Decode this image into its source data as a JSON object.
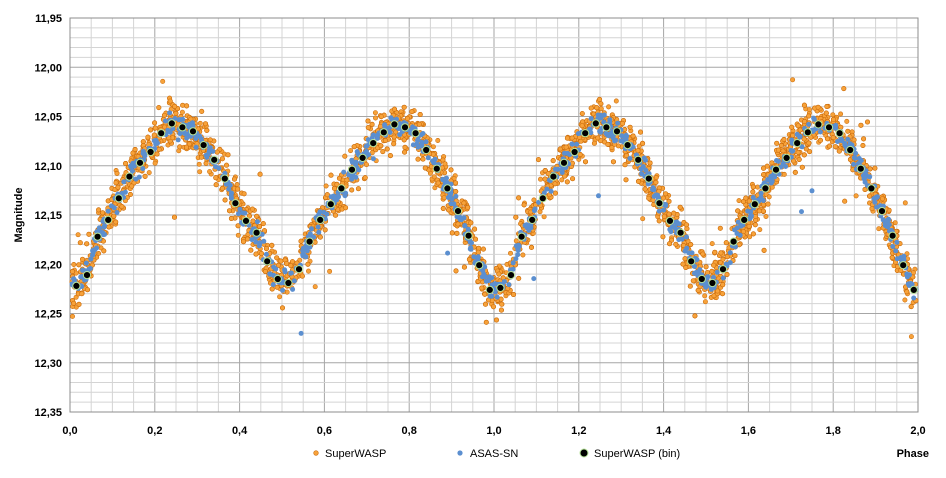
{
  "chart_data": {
    "type": "scatter",
    "title": "",
    "xlabel": "Phase",
    "ylabel": "Magnitude",
    "xlim": [
      0,
      2
    ],
    "ylim": [
      11.95,
      12.35
    ],
    "y_inverted": true,
    "grid": true,
    "legend_position": "bottom",
    "decimal_separator": ",",
    "x_ticks": [
      "0,0",
      "0,2",
      "0,4",
      "0,6",
      "0,8",
      "1,0",
      "1,2",
      "1,4",
      "1,6",
      "1,8",
      "2,0"
    ],
    "y_ticks": [
      "11,95",
      "12,00",
      "12,05",
      "12,10",
      "12,15",
      "12,20",
      "12,25",
      "12,30",
      "12,35"
    ],
    "legend": {
      "superwasp": "SuperWASP",
      "asassn": "ASAS-SN",
      "superwasp_bin": "SuperWASP (bin)"
    },
    "colors": {
      "superwasp_fill": "#f7a23a",
      "superwasp_edge": "#c96a0a",
      "asassn": "#5b8fd0",
      "bin_fill": "#000000",
      "bin_edge": "#b7e59a",
      "grid_major": "#a6a6a6",
      "grid_minor": "#d4d4d4"
    },
    "series": [
      {
        "name": "SuperWASP (bin)",
        "x": [
          0.015,
          0.04,
          0.065,
          0.09,
          0.115,
          0.14,
          0.165,
          0.19,
          0.215,
          0.24,
          0.265,
          0.29,
          0.315,
          0.34,
          0.365,
          0.39,
          0.415,
          0.44,
          0.465,
          0.49,
          0.515,
          0.54,
          0.565,
          0.59,
          0.615,
          0.64,
          0.665,
          0.69,
          0.715,
          0.74,
          0.765,
          0.79,
          0.815,
          0.84,
          0.865,
          0.89,
          0.915,
          0.94,
          0.965,
          0.99,
          1.015,
          1.04,
          1.065,
          1.09,
          1.115,
          1.14,
          1.165,
          1.19,
          1.215,
          1.24,
          1.265,
          1.29,
          1.315,
          1.34,
          1.365,
          1.39,
          1.415,
          1.44,
          1.465,
          1.49,
          1.515,
          1.54,
          1.565,
          1.59,
          1.615,
          1.64,
          1.665,
          1.69,
          1.715,
          1.74,
          1.765,
          1.79,
          1.815,
          1.84,
          1.865,
          1.89,
          1.915,
          1.94,
          1.965,
          1.99
        ],
        "y": [
          12.222,
          12.211,
          12.172,
          12.155,
          12.133,
          12.111,
          12.097,
          12.086,
          12.067,
          12.057,
          12.061,
          12.065,
          12.079,
          12.094,
          12.113,
          12.138,
          12.156,
          12.168,
          12.197,
          12.215,
          12.219,
          12.205,
          12.177,
          12.155,
          12.139,
          12.123,
          12.104,
          12.092,
          12.077,
          12.066,
          12.058,
          12.061,
          12.067,
          12.084,
          12.103,
          12.123,
          12.146,
          12.171,
          12.201,
          12.226,
          12.224,
          12.211,
          12.172,
          12.155,
          12.133,
          12.111,
          12.097,
          12.086,
          12.067,
          12.057,
          12.061,
          12.065,
          12.079,
          12.094,
          12.113,
          12.138,
          12.156,
          12.168,
          12.197,
          12.215,
          12.219,
          12.205,
          12.177,
          12.155,
          12.139,
          12.123,
          12.104,
          12.092,
          12.077,
          12.066,
          12.058,
          12.061,
          12.067,
          12.084,
          12.103,
          12.123,
          12.146,
          12.171,
          12.201,
          12.226
        ]
      },
      {
        "name": "SuperWASP",
        "points": "dense phase-folded scatter (~6000 points) around the binned curve"
      },
      {
        "name": "ASAS-SN",
        "points": "dense phase-folded scatter (~900 points) around the binned curve"
      }
    ]
  }
}
